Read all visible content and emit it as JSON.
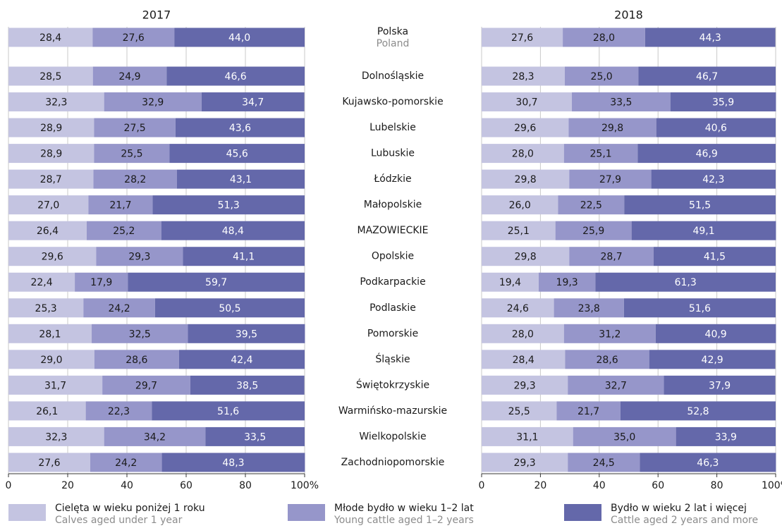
{
  "chart_data": {
    "type": "bar",
    "horizontal": true,
    "stacked": true,
    "categories": [
      "Polska",
      "Dolnośląskie",
      "Kujawsko-pomorskie",
      "Lubelskie",
      "Lubuskie",
      "Łódzkie",
      "Małopolskie",
      "MAZOWIECKIE",
      "Opolskie",
      "Podkarpackie",
      "Podlaskie",
      "Pomorskie",
      "Śląskie",
      "Świętokrzyskie",
      "Warmińsko-mazurskie",
      "Wielkopolskie",
      "Zachodniopomorskie"
    ],
    "categories_en": [
      "Poland",
      null,
      null,
      null,
      null,
      null,
      null,
      null,
      null,
      null,
      null,
      null,
      null,
      null,
      null,
      null,
      null
    ],
    "xlim": [
      0,
      100
    ],
    "xticks": [
      0,
      20,
      40,
      60,
      80,
      {
        "value": 100,
        "label": "100%"
      }
    ],
    "grid": true,
    "series": [
      {
        "name": "Cielęta w wieku poniżej 1 roku",
        "name_en": "Calves aged under 1 year",
        "color": "#c4c4e1"
      },
      {
        "name": "Młode bydło w wieku 1–2 lat",
        "name_en": "Young cattle aged 1–2 years",
        "color": "#9696ca"
      },
      {
        "name": "Bydło w wieku 2 lat i więcej",
        "name_en": "Cattle aged 2 years and more",
        "color": "#6468aa"
      }
    ],
    "panels": [
      {
        "title": "2017",
        "values": [
          [
            28.4,
            28.5,
            32.3,
            28.9,
            28.9,
            28.7,
            27.0,
            26.4,
            29.6,
            22.4,
            25.3,
            28.1,
            29.0,
            31.7,
            26.1,
            32.3,
            27.6
          ],
          [
            27.6,
            24.9,
            32.9,
            27.5,
            25.5,
            28.2,
            21.7,
            25.2,
            29.3,
            17.9,
            24.2,
            32.5,
            28.6,
            29.7,
            22.3,
            34.2,
            24.2
          ],
          [
            44.0,
            46.6,
            34.7,
            43.6,
            45.6,
            43.1,
            51.3,
            48.4,
            41.1,
            59.7,
            50.5,
            39.5,
            42.4,
            38.5,
            51.6,
            33.5,
            48.3
          ]
        ],
        "value_labels": [
          [
            "28,4",
            "28,5",
            "32,3",
            "28,9",
            "28,9",
            "28,7",
            "27,0",
            "26,4",
            "29,6",
            "22,4",
            "25,3",
            "28,1",
            "29,0",
            "31,7",
            "26,1",
            "32,3",
            "27,6"
          ],
          [
            "27,6",
            "24,9",
            "32,9",
            "27,5",
            "25,5",
            "28,2",
            "21,7",
            "25,2",
            "29,3",
            "17,9",
            "24,2",
            "32,5",
            "28,6",
            "29,7",
            "22,3",
            "34,2",
            "24,2"
          ],
          [
            "44,0",
            "46,6",
            "34,7",
            "43,6",
            "45,6",
            "43,1",
            "51,3",
            "48,4",
            "41,1",
            "59,7",
            "50,5",
            "39,5",
            "42,4",
            "38,5",
            "51,6",
            "33,5",
            "48,3"
          ]
        ]
      },
      {
        "title": "2018",
        "values": [
          [
            27.6,
            28.3,
            30.7,
            29.6,
            28.0,
            29.8,
            26.0,
            25.1,
            29.8,
            19.4,
            24.6,
            28.0,
            28.4,
            29.3,
            25.5,
            31.1,
            29.3
          ],
          [
            28.0,
            25.0,
            33.5,
            29.8,
            25.1,
            27.9,
            22.5,
            25.9,
            28.7,
            19.3,
            23.8,
            31.2,
            28.6,
            32.7,
            21.7,
            35.0,
            24.5
          ],
          [
            44.3,
            46.7,
            35.9,
            40.6,
            46.9,
            42.3,
            51.5,
            49.1,
            41.5,
            61.3,
            51.6,
            40.9,
            42.9,
            37.9,
            52.8,
            33.9,
            46.3
          ]
        ],
        "value_labels": [
          [
            "27,6",
            "28,3",
            "30,7",
            "29,6",
            "28,0",
            "29,8",
            "26,0",
            "25,1",
            "29,8",
            "19,4",
            "24,6",
            "28,0",
            "28,4",
            "29,3",
            "25,5",
            "31,1",
            "29,3"
          ],
          [
            "28,0",
            "25,0",
            "33,5",
            "29,8",
            "25,1",
            "27,9",
            "22,5",
            "25,9",
            "28,7",
            "19,3",
            "23,8",
            "31,2",
            "28,6",
            "32,7",
            "21,7",
            "35,0",
            "24,5"
          ],
          [
            "44,3",
            "46,7",
            "35,9",
            "40,6",
            "46,9",
            "42,3",
            "51,5",
            "49,1",
            "41,5",
            "61,3",
            "51,6",
            "40,9",
            "42,9",
            "37,9",
            "52,8",
            "33,9",
            "46,3"
          ]
        ]
      }
    ]
  }
}
